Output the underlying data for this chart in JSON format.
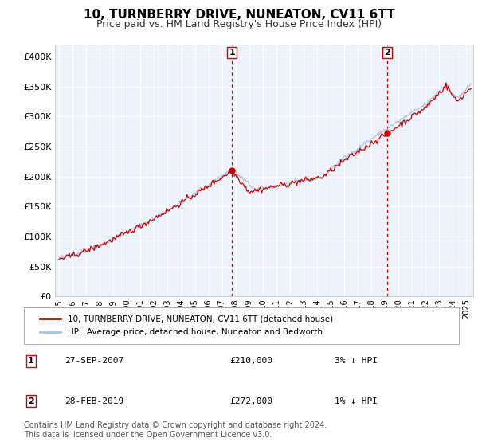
{
  "title": "10, TURNBERRY DRIVE, NUNEATON, CV11 6TT",
  "subtitle": "Price paid vs. HM Land Registry's House Price Index (HPI)",
  "title_fontsize": 11,
  "subtitle_fontsize": 9,
  "background_color": "#ffffff",
  "plot_bg_color": "#eef2fa",
  "grid_color": "#ffffff",
  "hpi_color": "#a8c4e0",
  "price_color": "#cc0000",
  "marker_color": "#cc0000",
  "vline_color": "#cc0000",
  "ylim": [
    0,
    420000
  ],
  "ytick_values": [
    0,
    50000,
    100000,
    150000,
    200000,
    250000,
    300000,
    350000,
    400000
  ],
  "ytick_labels": [
    "£0",
    "£50K",
    "£100K",
    "£150K",
    "£200K",
    "£250K",
    "£300K",
    "£350K",
    "£400K"
  ],
  "xlim_start": 1994.7,
  "xlim_end": 2025.5,
  "xtick_years": [
    1995,
    1996,
    1997,
    1998,
    1999,
    2000,
    2001,
    2002,
    2003,
    2004,
    2005,
    2006,
    2007,
    2008,
    2009,
    2010,
    2011,
    2012,
    2013,
    2014,
    2015,
    2016,
    2017,
    2018,
    2019,
    2020,
    2021,
    2022,
    2023,
    2024,
    2025
  ],
  "marker1_x": 2007.74,
  "marker1_y": 210000,
  "marker2_x": 2019.16,
  "marker2_y": 272000,
  "legend_line1": "10, TURNBERRY DRIVE, NUNEATON, CV11 6TT (detached house)",
  "legend_line2": "HPI: Average price, detached house, Nuneaton and Bedworth",
  "table_row1_num": "1",
  "table_row1_date": "27-SEP-2007",
  "table_row1_price": "£210,000",
  "table_row1_hpi": "3% ↓ HPI",
  "table_row2_num": "2",
  "table_row2_date": "28-FEB-2019",
  "table_row2_price": "£272,000",
  "table_row2_hpi": "1% ↓ HPI",
  "footnote": "Contains HM Land Registry data © Crown copyright and database right 2024.\nThis data is licensed under the Open Government Licence v3.0.",
  "footnote_fontsize": 7.0
}
